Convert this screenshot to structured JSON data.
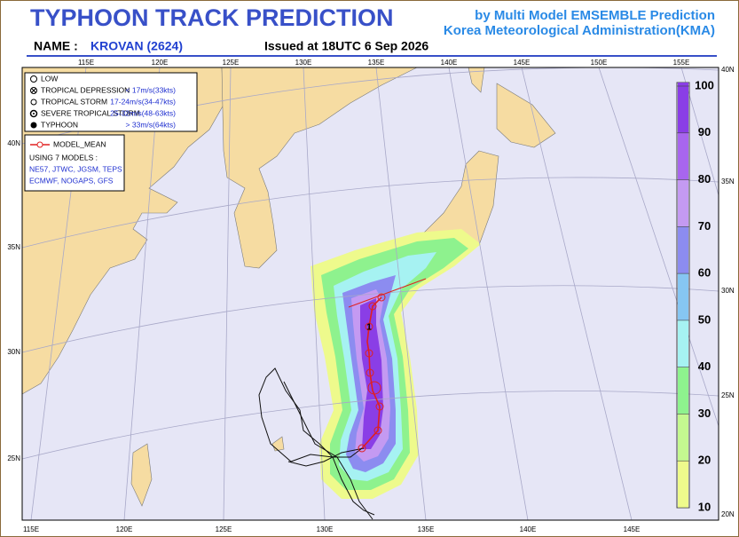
{
  "header": {
    "title": "TYPHOON  TRACK  PREDICTION",
    "subtitle": "by Multi Model EMSEMBLE Prediction",
    "agency": "Korea Meteorological Administration(KMA)",
    "name_label": "NAME :",
    "name": "KROVAN (2624)",
    "issued": "Issued at  18UTC  6 Sep 2026"
  },
  "legend": {
    "intensity": [
      {
        "label": "LOW"
      },
      {
        "label": "TROPICAL DEPRESSION",
        "range": "< 17m/s(33kts)"
      },
      {
        "label": "TROPICAL STORM",
        "range": "17-24m/s(34-47kts)"
      },
      {
        "label": "SEVERE TROPICAL STORM",
        "range": "25-32m/s(48-63kts)"
      },
      {
        "label": "TYPHOON",
        "range": "> 33m/s(64kts)"
      }
    ],
    "model_mean": "MODEL_MEAN",
    "models_title": "USING 7 MODELS :",
    "models": [
      "NE57, JTWC, JGSM, TEPS",
      "ECMWF, NOGAPS, GFS"
    ]
  },
  "map": {
    "lon_top": [
      "115E",
      "120E",
      "125E",
      "130E",
      "135E",
      "140E",
      "145E",
      "150E",
      "155E"
    ],
    "lon_bottom": [
      "115E",
      "120E",
      "125E",
      "130E",
      "135E",
      "140E",
      "145E"
    ],
    "lat_left": [
      "40N",
      "35N",
      "30N",
      "25N"
    ],
    "lat_right": [
      "40N",
      "35N",
      "30N",
      "25N",
      "20N"
    ],
    "track_label": "1"
  },
  "colorbar": {
    "levels": [
      100,
      90,
      80,
      70,
      60,
      50,
      40,
      30,
      20,
      10
    ],
    "colors": [
      "#8a3ee6",
      "#a866ee",
      "#c49af2",
      "#8c8cf0",
      "#86c6f2",
      "#a6f2f2",
      "#8ef28e",
      "#c4f890",
      "#eefa8c"
    ]
  }
}
